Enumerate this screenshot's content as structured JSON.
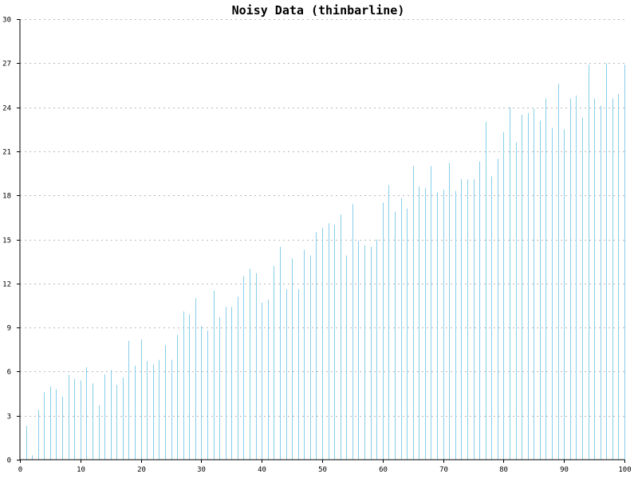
{
  "chart_data": {
    "type": "bar",
    "title": "Noisy Data (thinbarline)",
    "xlabel": "",
    "ylabel": "",
    "xlim": [
      0,
      100
    ],
    "ylim": [
      0,
      30
    ],
    "x_ticks": [
      0,
      10,
      20,
      30,
      40,
      50,
      60,
      70,
      80,
      90,
      100
    ],
    "y_ticks": [
      0,
      3,
      6,
      9,
      12,
      15,
      18,
      21,
      24,
      27,
      30
    ],
    "grid": true,
    "bar_color": "#87ceeb",
    "x": [
      0,
      1,
      2,
      3,
      4,
      5,
      6,
      7,
      8,
      9,
      10,
      11,
      12,
      13,
      14,
      15,
      16,
      17,
      18,
      19,
      20,
      21,
      22,
      23,
      24,
      25,
      26,
      27,
      28,
      29,
      30,
      31,
      32,
      33,
      34,
      35,
      36,
      37,
      38,
      39,
      40,
      41,
      42,
      43,
      44,
      45,
      46,
      47,
      48,
      49,
      50,
      51,
      52,
      53,
      54,
      55,
      56,
      57,
      58,
      59,
      60,
      61,
      62,
      63,
      64,
      65,
      66,
      67,
      68,
      69,
      70,
      71,
      72,
      73,
      74,
      75,
      76,
      77,
      78,
      79,
      80,
      81,
      82,
      83,
      84,
      85,
      86,
      87,
      88,
      89,
      90,
      91,
      92,
      93,
      94,
      95,
      96,
      97,
      98,
      99,
      100
    ],
    "values": [
      0,
      2.3,
      0.3,
      3.4,
      4.6,
      5.0,
      4.8,
      4.3,
      5.8,
      5.5,
      5.4,
      6.3,
      5.2,
      3.7,
      5.8,
      6.1,
      5.1,
      5.6,
      8.1,
      6.4,
      8.2,
      6.7,
      6.5,
      6.8,
      7.8,
      6.8,
      8.5,
      10.1,
      9.9,
      11.0,
      9.1,
      8.8,
      11.5,
      9.7,
      10.4,
      10.4,
      11.1,
      12.5,
      13.0,
      12.7,
      10.7,
      10.9,
      13.2,
      14.5,
      11.6,
      13.7,
      11.6,
      14.3,
      13.9,
      15.5,
      15.8,
      16.1,
      16.0,
      16.7,
      13.9,
      17.4,
      14.9,
      14.6,
      14.5,
      15.0,
      17.5,
      18.7,
      16.9,
      17.8,
      17.1,
      20.0,
      18.6,
      18.5,
      20.0,
      18.2,
      18.4,
      20.2,
      18.3,
      19.1,
      19.1,
      19.1,
      20.3,
      23.0,
      19.3,
      20.5,
      22.3,
      24.0,
      21.6,
      23.5,
      23.6,
      23.9,
      23.1,
      24.6,
      22.6,
      25.6,
      22.5,
      24.6,
      24.8,
      23.3,
      26.9,
      24.6,
      24.1,
      27.0,
      24.6,
      24.9,
      26.9
    ]
  }
}
